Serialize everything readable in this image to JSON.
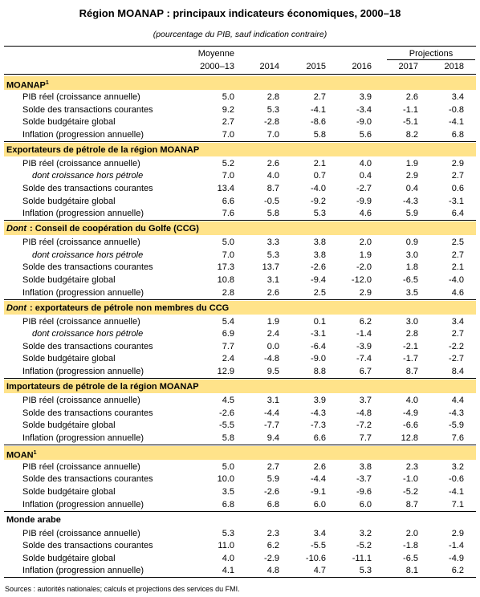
{
  "header": {
    "title": "Région MOANAP : principaux indicateurs économiques, 2000–18",
    "subtitle": "(pourcentage du PIB, sauf indication contraire)"
  },
  "table": {
    "columns": [
      [
        "Moyenne",
        "2000–13"
      ],
      [
        "2014"
      ],
      [
        "2015"
      ],
      [
        "2016"
      ],
      [
        "2017"
      ],
      [
        "2018"
      ]
    ],
    "projections_label": "Projections",
    "sections": [
      {
        "title": "MOANAP",
        "note": "1",
        "highlight": true,
        "rows": [
          {
            "label": "PIB réel (croissance annuelle)",
            "values": [
              "5.0",
              "2.8",
              "2.7",
              "3.9",
              "2.6",
              "3.4"
            ]
          },
          {
            "label": "Solde des transactions courantes",
            "values": [
              "9.2",
              "5.3",
              "-4.1",
              "-3.4",
              "-1.1",
              "-0.8"
            ]
          },
          {
            "label": "Solde budgétaire global",
            "values": [
              "2.7",
              "-2.8",
              "-8.6",
              "-9.0",
              "-5.1",
              "-4.1"
            ]
          },
          {
            "label": "Inflation (progression annuelle)",
            "values": [
              "7.0",
              "7.0",
              "5.8",
              "5.6",
              "8.2",
              "6.8"
            ]
          }
        ]
      },
      {
        "title": "Exportateurs de pétrole de la région MOANAP",
        "highlight": true,
        "rows": [
          {
            "label": "PIB réel (croissance annuelle)",
            "values": [
              "5.2",
              "2.6",
              "2.1",
              "4.0",
              "1.9",
              "2.9"
            ]
          },
          {
            "label": "dont croissance hors pétrole",
            "italic": true,
            "values": [
              "7.0",
              "4.0",
              "0.7",
              "0.4",
              "2.9",
              "2.7"
            ]
          },
          {
            "label": "Solde des transactions courantes",
            "values": [
              "13.4",
              "8.7",
              "-4.0",
              "-2.7",
              "0.4",
              "0.6"
            ]
          },
          {
            "label": "Solde budgétaire global",
            "values": [
              "6.6",
              "-0.5",
              "-9.2",
              "-9.9",
              "-4.3",
              "-3.1"
            ]
          },
          {
            "label": "Inflation (progression annuelle)",
            "values": [
              "7.6",
              "5.8",
              "5.3",
              "4.6",
              "5.9",
              "6.4"
            ]
          }
        ]
      },
      {
        "emphasis": "Dont",
        "title": ": Conseil de coopération du Golfe (CCG)",
        "highlight": true,
        "rows": [
          {
            "label": "PIB réel (croissance annuelle)",
            "values": [
              "5.0",
              "3.3",
              "3.8",
              "2.0",
              "0.9",
              "2.5"
            ]
          },
          {
            "label": "dont croissance hors pétrole",
            "italic": true,
            "values": [
              "7.0",
              "5.3",
              "3.8",
              "1.9",
              "3.0",
              "2.7"
            ]
          },
          {
            "label": "Solde des transactions courantes",
            "values": [
              "17.3",
              "13.7",
              "-2.6",
              "-2.0",
              "1.8",
              "2.1"
            ]
          },
          {
            "label": "Solde budgétaire global",
            "values": [
              "10.8",
              "3.1",
              "-9.4",
              "-12.0",
              "-6.5",
              "-4.0"
            ]
          },
          {
            "label": "Inflation (progression annuelle)",
            "values": [
              "2.8",
              "2.6",
              "2.5",
              "2.9",
              "3.5",
              "4.6"
            ]
          }
        ]
      },
      {
        "emphasis": "Dont",
        "title": ": exportateurs de pétrole non membres du CCG",
        "highlight": true,
        "rows": [
          {
            "label": "PIB réel (croissance annuelle)",
            "values": [
              "5.4",
              "1.9",
              "0.1",
              "6.2",
              "3.0",
              "3.4"
            ]
          },
          {
            "label": "dont croissance hors pétrole",
            "italic": true,
            "values": [
              "6.9",
              "2.4",
              "-3.1",
              "-1.4",
              "2.8",
              "2.7"
            ]
          },
          {
            "label": "Solde des transactions courantes",
            "values": [
              "7.7",
              "0.0",
              "-6.4",
              "-3.9",
              "-2.1",
              "-2.2"
            ]
          },
          {
            "label": "Solde budgétaire global",
            "values": [
              "2.4",
              "-4.8",
              "-9.0",
              "-7.4",
              "-1.7",
              "-2.7"
            ]
          },
          {
            "label": "Inflation (progression annuelle)",
            "values": [
              "12.9",
              "9.5",
              "8.8",
              "6.7",
              "8.7",
              "8.4"
            ]
          }
        ]
      },
      {
        "title": "Importateurs de pétrole de la région MOANAP",
        "highlight": true,
        "rows": [
          {
            "label": "PIB réel (croissance annuelle)",
            "values": [
              "4.5",
              "3.1",
              "3.9",
              "3.7",
              "4.0",
              "4.4"
            ]
          },
          {
            "label": "Solde des transactions courantes",
            "values": [
              "-2.6",
              "-4.4",
              "-4.3",
              "-4.8",
              "-4.9",
              "-4.3"
            ]
          },
          {
            "label": "Solde budgétaire global",
            "values": [
              "-5.5",
              "-7.7",
              "-7.3",
              "-7.2",
              "-6.6",
              "-5.9"
            ]
          },
          {
            "label": "Inflation (progression annuelle)",
            "values": [
              "5.8",
              "9.4",
              "6.6",
              "7.7",
              "12.8",
              "7.6"
            ]
          }
        ]
      },
      {
        "title": "MOAN",
        "note": "1",
        "highlight": true,
        "rows": [
          {
            "label": "PIB réel (croissance annuelle)",
            "values": [
              "5.0",
              "2.7",
              "2.6",
              "3.8",
              "2.3",
              "3.2"
            ]
          },
          {
            "label": "Solde des transactions courantes",
            "values": [
              "10.0",
              "5.9",
              "-4.4",
              "-3.7",
              "-1.0",
              "-0.6"
            ]
          },
          {
            "label": "Solde budgétaire global",
            "values": [
              "3.5",
              "-2.6",
              "-9.1",
              "-9.6",
              "-5.2",
              "-4.1"
            ]
          },
          {
            "label": "Inflation (progression annuelle)",
            "values": [
              "6.8",
              "6.8",
              "6.0",
              "6.0",
              "8.7",
              "7.1"
            ]
          }
        ]
      },
      {
        "title": "Monde arabe",
        "highlight": false,
        "rows": [
          {
            "label": "PIB réel (croissance annuelle)",
            "values": [
              "5.3",
              "2.3",
              "3.4",
              "3.2",
              "2.0",
              "2.9"
            ]
          },
          {
            "label": "Solde des transactions courantes",
            "values": [
              "11.0",
              "6.2",
              "-5.5",
              "-5.2",
              "-1.8",
              "-1.4"
            ]
          },
          {
            "label": "Solde budgétaire global",
            "values": [
              "4.0",
              "-2.9",
              "-10.6",
              "-11.1",
              "-6.5",
              "-4.9"
            ]
          },
          {
            "label": "Inflation (progression annuelle)",
            "values": [
              "4.1",
              "4.8",
              "4.7",
              "5.3",
              "8.1",
              "6.2"
            ]
          }
        ]
      }
    ]
  },
  "footer": {
    "source": "Sources : autorités nationales; calculs et projections des services du FMI."
  }
}
